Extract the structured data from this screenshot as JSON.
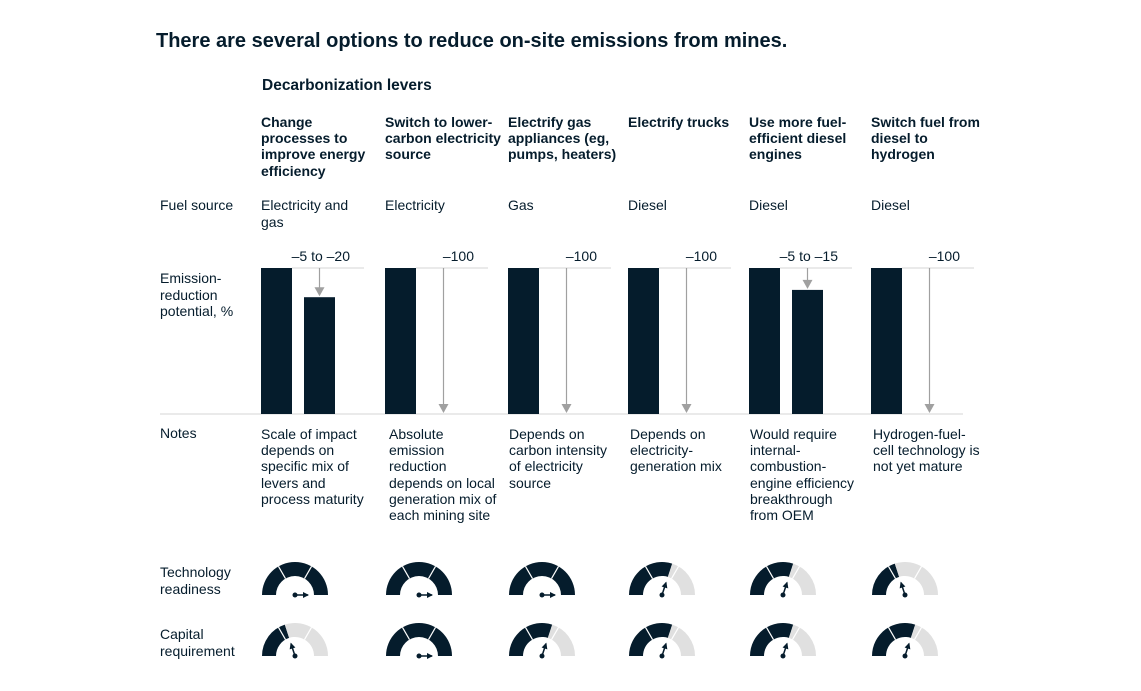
{
  "title": "There are several options to reduce on-site emissions from mines.",
  "subtitle": "Decarbonization levers",
  "row_labels": {
    "fuel": "Fuel source",
    "emission": "Emission-reduction potential, %",
    "notes": "Notes",
    "tech": "Technology readiness",
    "capital": "Capital requirement"
  },
  "colors": {
    "dark": "#051c2c",
    "light": "#e0e0e0",
    "arrow": "#a0a0a0"
  },
  "chart_data": {
    "type": "bar",
    "ylim": [
      0,
      100
    ],
    "levers": [
      {
        "header": "Change processes to improve energy efficiency",
        "fuel": "Electricity and gas",
        "label": "–5 to –20",
        "reduction": [
          5,
          20
        ],
        "note": "Scale of impact depends on specific mix of levers and process maturity",
        "tech_readiness": 1.0,
        "capital_requirement": 0.4
      },
      {
        "header": "Switch to lower-carbon electricity source",
        "fuel": "Electricity",
        "label": "–100",
        "reduction": [
          100,
          100
        ],
        "note": "Absolute emission reduction depends on local generation mix of each mining site",
        "tech_readiness": 1.0,
        "capital_requirement": 1.0
      },
      {
        "header": "Electrify gas appliances (eg, pumps, heaters)",
        "fuel": "Gas",
        "label": "–100",
        "reduction": [
          100,
          100
        ],
        "note": "Depends on carbon intensity of electricity source",
        "tech_readiness": 1.0,
        "capital_requirement": 0.6
      },
      {
        "header": "Electrify trucks",
        "fuel": "Diesel",
        "label": "–100",
        "reduction": [
          100,
          100
        ],
        "note": "Depends on electricity-generation mix",
        "tech_readiness": 0.6,
        "capital_requirement": 0.6
      },
      {
        "header": "Use more fuel-efficient diesel engines",
        "fuel": "Diesel",
        "label": "–5 to –15",
        "reduction": [
          5,
          15
        ],
        "note": "Would require internal-combustion-engine efficiency breakthrough from OEM",
        "tech_readiness": 0.6,
        "capital_requirement": 0.6
      },
      {
        "header": "Switch fuel from diesel to hydrogen",
        "fuel": "Diesel",
        "label": "–100",
        "reduction": [
          100,
          100
        ],
        "note": "Hydrogen-fuel-cell technology is not yet mature",
        "tech_readiness": 0.4,
        "capital_requirement": 0.6
      }
    ]
  }
}
